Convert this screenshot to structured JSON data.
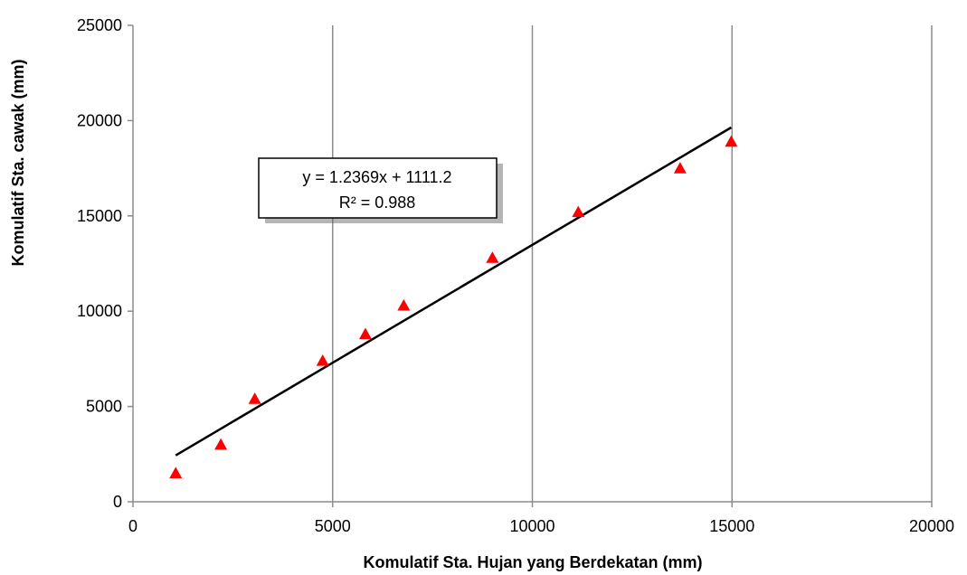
{
  "chart_data": {
    "type": "scatter",
    "xlabel": "Komulatif Sta. Hujan yang Berdekatan (mm)",
    "ylabel": "Komulatif Sta. cawak (mm)",
    "xlim": [
      0,
      20000
    ],
    "ylim": [
      0,
      25000
    ],
    "x_ticks": [
      0,
      5000,
      10000,
      15000,
      20000
    ],
    "y_ticks": [
      0,
      5000,
      10000,
      15000,
      20000,
      25000
    ],
    "x_tick_labels": [
      "0",
      "5000",
      "10000",
      "15000",
      "20000"
    ],
    "y_tick_labels": [
      "0",
      "5000",
      "10000",
      "15000",
      "20000",
      "25000"
    ],
    "grid": "vertical",
    "marker": "triangle",
    "marker_color": "#ff0000",
    "trendline_color": "#000000",
    "gridline_color": "#8c8c8c",
    "series": [
      {
        "x": [
          1070,
          2200,
          3050,
          4750,
          5820,
          6780,
          9000,
          11150,
          13700,
          14980
        ],
        "y": [
          1500,
          3000,
          5400,
          7400,
          8800,
          10300,
          12800,
          15200,
          17500,
          18900
        ]
      }
    ],
    "trendline": {
      "slope": 1.2369,
      "intercept": 1111.2,
      "x_start": 1070,
      "x_end": 14980,
      "equation": "y = 1.2369x + 1111.2",
      "r_squared": "R² = 0.988"
    }
  }
}
